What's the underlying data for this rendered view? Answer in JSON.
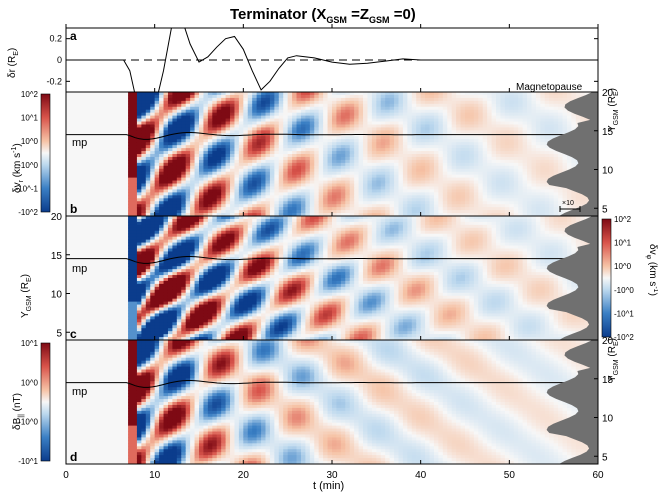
{
  "figure": {
    "title": {
      "main": "Terminator (X",
      "sub1": "GSM",
      "mid": " =Z",
      "sub2": "GSM",
      "end": " =0)"
    }
  },
  "chart_data": [
    {
      "panel": "a",
      "type": "line",
      "ylabel": "δr (R_E)",
      "yticks": [
        "0.2",
        "0",
        "-0.2"
      ],
      "ylim": [
        -0.3,
        0.3
      ],
      "xlim": [
        0,
        60
      ],
      "annotation": "Magnetopause",
      "series": [
        {
          "style": "solid",
          "x": [
            0,
            6.5,
            7.2,
            8,
            9,
            10,
            11,
            12,
            13,
            14,
            15,
            16,
            17,
            18,
            19,
            20,
            21,
            22,
            23,
            24,
            25,
            26,
            28,
            30,
            32,
            34,
            36,
            38,
            40,
            42,
            45,
            50,
            55,
            60
          ],
          "y": [
            0,
            0,
            -0.1,
            -0.4,
            -0.5,
            -0.45,
            -0.1,
            0.35,
            0.4,
            0.15,
            -0.02,
            0.03,
            0.12,
            0.2,
            0.22,
            0.1,
            -0.1,
            -0.28,
            -0.2,
            -0.08,
            0.02,
            0.04,
            0.02,
            -0.02,
            -0.04,
            -0.03,
            -0.01,
            0.01,
            0.0,
            0.0,
            0.0,
            0.0,
            0.0,
            0.0
          ]
        },
        {
          "style": "dashed",
          "x": [
            0,
            60
          ],
          "y": [
            0,
            0
          ]
        }
      ]
    },
    {
      "panel": "b",
      "type": "heatmap",
      "quantity": "δv_r (km s^-1)",
      "colorbar_ticks": [
        "10^2",
        "10^1",
        "10^0",
        "-10^0",
        "-10^-1",
        "-10^2"
      ],
      "colorbar_ticks_right": [
        "10^2",
        "10^1",
        "10^0",
        "-10^0",
        "-10^1",
        "-10^2"
      ],
      "right_ylabel": "Y_GSM (R_E)",
      "right_ticks": [
        "20",
        "15",
        "10",
        "5"
      ],
      "ylim": [
        4,
        20
      ],
      "mp_label": "mp",
      "scale_label": "×10"
    },
    {
      "panel": "c",
      "type": "heatmap",
      "quantity": "δv_φ (km s^-1)",
      "ylabel": "Y_GSM (R_E)",
      "left_ticks": [
        "20",
        "15",
        "10",
        "5"
      ],
      "ylim": [
        4,
        20
      ],
      "mp_label": "mp"
    },
    {
      "panel": "d",
      "type": "heatmap",
      "quantity": "δB_|| (nT)",
      "colorbar_ticks": [
        "10^1",
        "10^0",
        "-10^0",
        "-10^1"
      ],
      "right_ylabel": "Y_GSM (R_E)",
      "right_ticks": [
        "20",
        "15",
        "10",
        "5"
      ],
      "ylim": [
        4,
        20
      ],
      "mp_label": "mp",
      "xlabel": "t (min)",
      "xticks": [
        "0",
        "10",
        "20",
        "30",
        "40",
        "50",
        "60"
      ],
      "xlim": [
        0,
        60
      ]
    }
  ],
  "labels": {
    "panel_a": "a",
    "panel_b": "b",
    "panel_c": "c",
    "panel_d": "d",
    "dr": "δr (R",
    "dr_sub": "E",
    "dr_end": ")",
    "vr": "δv",
    "vr_sub": "r",
    "vr_unit": " (km s",
    "vr_unit_sup": "-1",
    "vr_end": ")",
    "vphi": "δv",
    "vphi_sub": "φ",
    "vphi_unit": " (km s",
    "vphi_unit_sup": "-1",
    "vphi_end": ")",
    "ygsm": "Y",
    "ygsm_sub": "GSM",
    "ygsm_unit": " (R",
    "ygsm_unit_sub": "E",
    "ygsm_end": ")",
    "bpar": "δB",
    "bpar_sub": "||",
    "bpar_unit": " (nT)",
    "xlabel": "t (min)"
  }
}
